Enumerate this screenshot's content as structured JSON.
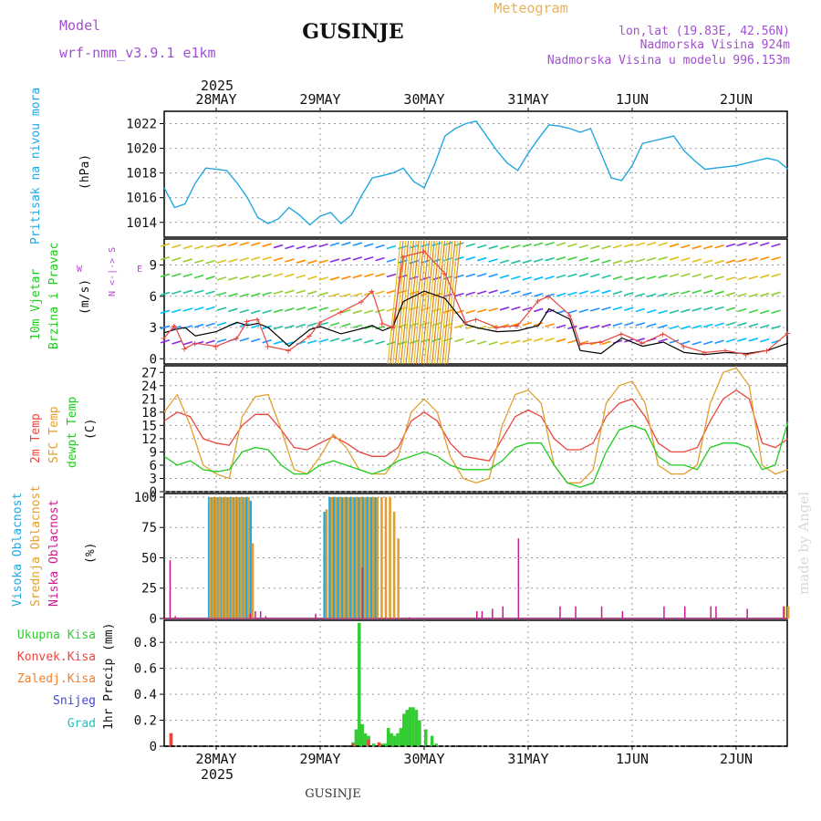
{
  "header": {
    "model_label": "Model",
    "model_name": "wrf-nmm_v3.9.1 e1km",
    "title": "GUSINJE",
    "subtitle": "Meteogram",
    "lonlat": "lon,lat (19.83E, 42.56N)",
    "altitude": "Nadmorska Visina 924m",
    "model_altitude": "Nadmorska Visina u modelu 996.153m",
    "footer_title": "GUSINJE",
    "watermark": "made by Angel",
    "year": "2025"
  },
  "dates": [
    "28MAY",
    "29MAY",
    "30MAY",
    "31MAY",
    "1JUN",
    "2JUN"
  ],
  "colors": {
    "pressure": "#22a7e0",
    "temp2m": "#e8463f",
    "sfc": "#e0a030",
    "dew": "#1fcc1f",
    "high_cloud": "#22a7e0",
    "mid_cloud": "#e0a030",
    "low_cloud": "#cc1b8e",
    "total_precip": "#33cc33",
    "conv_precip": "#e8463f",
    "freezing": "#f08030",
    "snow": "#4545e0",
    "hail": "#22c0c0",
    "purple": "#a050d0"
  },
  "panels": {
    "pressure": {
      "label": "Pritisak na nivou mora",
      "unit": "(hPa)"
    },
    "wind": {
      "label1": "10m Vjetar",
      "label2": "Brzina i Pravac",
      "unit": "(m/s)",
      "compass_ns": "N <-|-> S",
      "w": "W",
      "e": "E"
    },
    "temp": {
      "label1": "2m Temp",
      "label2": "SFC Temp",
      "label3": "dewpt Temp",
      "unit": "(C)"
    },
    "cloud": {
      "label1": "Visoka Oblacnost",
      "label2": "Srednja Oblacnost",
      "label3": "Niska Oblacnost",
      "unit": "(%)"
    },
    "precip": {
      "legend": [
        "Ukupna Kisa",
        "Konvek.Kisa",
        "Zaledj.Kisa",
        "Snijeg",
        "Grad"
      ],
      "unit": "1hr Precip (mm)"
    }
  },
  "chart_data": [
    {
      "type": "line",
      "name": "pressure",
      "ylabel": "(hPa)",
      "ylim": [
        1012.8,
        1023
      ],
      "xlim_days": [
        0,
        6
      ],
      "yticks": [
        1014,
        1016,
        1018,
        1020,
        1022
      ],
      "x": [
        0.0,
        0.1,
        0.2,
        0.3,
        0.4,
        0.5,
        0.6,
        0.7,
        0.8,
        0.9,
        1.0,
        1.1,
        1.2,
        1.3,
        1.4,
        1.5,
        1.6,
        1.7,
        1.8,
        1.9,
        2.0,
        2.1,
        2.2,
        2.3,
        2.4,
        2.5,
        2.6,
        2.7,
        2.8,
        2.9,
        3.0,
        3.1,
        3.2,
        3.3,
        3.4,
        3.5,
        3.6,
        3.7,
        3.8,
        3.9,
        4.0,
        4.1,
        4.2,
        4.3,
        4.4,
        4.5,
        4.6,
        4.7,
        4.8,
        4.9,
        5.0,
        5.1,
        5.2,
        5.3,
        5.4,
        5.5,
        5.6,
        5.7,
        5.8,
        5.9,
        6.0
      ],
      "y": [
        1016.8,
        1015.2,
        1015.5,
        1017.2,
        1018.4,
        1018.3,
        1018.2,
        1017.2,
        1016.0,
        1014.4,
        1013.9,
        1014.3,
        1015.2,
        1014.6,
        1013.8,
        1014.5,
        1014.8,
        1013.9,
        1014.6,
        1016.2,
        1017.6,
        1017.8,
        1018.0,
        1018.4,
        1017.3,
        1016.8,
        1018.7,
        1021.0,
        1021.6,
        1022.0,
        1022.2,
        1021.0,
        1019.8,
        1018.8,
        1018.2,
        1019.6,
        1020.8,
        1021.9,
        1021.8,
        1021.6,
        1021.3,
        1021.6,
        1019.6,
        1017.6,
        1017.4,
        1018.6,
        1020.4,
        1020.6,
        1020.8,
        1021.0,
        1019.8,
        1019.0,
        1018.3,
        1018.4,
        1018.5,
        1018.6,
        1018.8,
        1019.0,
        1019.2,
        1019.0,
        1018.3
      ]
    },
    {
      "type": "line",
      "name": "wind",
      "ylabel": "(m/s)",
      "ylim": [
        -0.5,
        11.5
      ],
      "yticks": [
        0,
        3,
        6,
        9
      ],
      "series": [
        {
          "name": "black",
          "x": [
            0.0,
            0.1,
            0.2,
            0.3,
            0.5,
            0.7,
            0.8,
            0.9,
            1.0,
            1.2,
            1.4,
            1.5,
            1.7,
            1.9,
            2.0,
            2.1,
            2.2,
            2.3,
            2.5,
            2.7,
            2.9,
            3.0,
            3.2,
            3.4,
            3.6,
            3.7,
            3.9,
            4.0,
            4.2,
            4.4,
            4.6,
            4.8,
            5.0,
            5.2,
            5.4,
            5.6,
            5.8,
            6.0
          ],
          "y": [
            2.5,
            2.8,
            3.0,
            2.2,
            2.6,
            3.5,
            3.2,
            3.4,
            3.0,
            1.2,
            2.8,
            3.1,
            2.4,
            2.9,
            3.2,
            2.7,
            3.1,
            5.5,
            6.5,
            5.8,
            3.3,
            3.0,
            2.6,
            2.7,
            3.2,
            4.8,
            3.8,
            0.8,
            0.5,
            2.0,
            1.2,
            1.6,
            0.6,
            0.4,
            0.6,
            0.5,
            0.8,
            1.5
          ]
        },
        {
          "name": "red",
          "x": [
            0.0,
            0.1,
            0.2,
            0.3,
            0.5,
            0.7,
            0.8,
            0.9,
            1.0,
            1.2,
            1.4,
            1.5,
            1.7,
            1.9,
            2.0,
            2.1,
            2.2,
            2.3,
            2.5,
            2.7,
            2.9,
            3.0,
            3.2,
            3.4,
            3.6,
            3.7,
            3.9,
            4.0,
            4.2,
            4.4,
            4.6,
            4.8,
            5.0,
            5.2,
            5.4,
            5.6,
            5.8,
            6.0
          ],
          "y": [
            2.0,
            3.2,
            1.0,
            1.5,
            1.2,
            2.0,
            3.6,
            3.8,
            1.2,
            0.8,
            2.2,
            3.5,
            4.5,
            5.5,
            6.5,
            3.4,
            3.0,
            9.8,
            10.3,
            8.2,
            3.5,
            3.8,
            3.0,
            3.2,
            5.6,
            6.0,
            4.2,
            1.4,
            1.6,
            2.4,
            1.5,
            2.4,
            1.2,
            0.6,
            0.8,
            0.4,
            0.8,
            2.5
          ]
        }
      ]
    },
    {
      "type": "line",
      "name": "temperature",
      "ylabel": "(C)",
      "ylim": [
        0,
        28.5
      ],
      "yticks": [
        0,
        3,
        6,
        9,
        12,
        15,
        18,
        21,
        24,
        27
      ],
      "x": [
        0.0,
        0.125,
        0.25,
        0.375,
        0.5,
        0.625,
        0.75,
        0.875,
        1.0,
        1.125,
        1.25,
        1.375,
        1.5,
        1.625,
        1.75,
        1.875,
        2.0,
        2.125,
        2.25,
        2.375,
        2.5,
        2.625,
        2.75,
        2.875,
        3.0,
        3.125,
        3.25,
        3.375,
        3.5,
        3.625,
        3.75,
        3.875,
        4.0,
        4.125,
        4.25,
        4.375,
        4.5,
        4.625,
        4.75,
        4.875,
        5.0,
        5.125,
        5.25,
        5.375,
        5.5,
        5.625,
        5.75,
        5.875,
        6.0
      ],
      "series": [
        {
          "name": "2m",
          "y": [
            16,
            18,
            17,
            12,
            11,
            10.5,
            15,
            17.5,
            17.5,
            14,
            10,
            9.5,
            11,
            12.5,
            11,
            9,
            8,
            8,
            10,
            16,
            18,
            16,
            11,
            8,
            7.5,
            7,
            12,
            17,
            18.5,
            17,
            12,
            9.5,
            9.5,
            11,
            17,
            20,
            21,
            17,
            11,
            9,
            9,
            10,
            16,
            21,
            23,
            21,
            11,
            10,
            12
          ]
        },
        {
          "name": "sfc",
          "y": [
            18,
            22,
            15,
            6,
            4,
            3,
            17,
            21.5,
            22,
            14,
            5,
            4,
            8,
            13,
            10,
            5,
            4,
            4,
            8,
            18,
            21,
            18,
            8,
            3,
            2,
            3,
            15,
            22,
            23,
            20,
            6,
            2,
            2,
            5,
            20,
            24,
            25,
            20,
            6,
            4,
            4,
            6,
            20,
            27,
            28,
            24,
            6,
            4,
            5
          ]
        },
        {
          "name": "dew",
          "y": [
            8,
            6,
            7,
            5,
            4.5,
            5,
            9,
            10,
            9.5,
            6,
            4,
            4,
            6,
            7,
            6,
            5,
            4,
            5,
            7,
            8,
            9,
            8,
            6,
            5,
            5,
            5,
            7,
            10,
            11,
            11,
            6,
            2,
            1,
            2,
            9,
            14,
            15,
            14,
            8,
            6,
            6,
            5,
            10,
            11,
            11,
            10,
            5,
            6,
            16
          ]
        }
      ]
    },
    {
      "type": "bar",
      "name": "cloud",
      "ylabel": "(%)",
      "ylim": [
        0,
        103
      ],
      "yticks": [
        0,
        25,
        50,
        75,
        100
      ],
      "series": [
        {
          "name": "high",
          "x": [
            0.42,
            0.45,
            0.48,
            0.51,
            0.54,
            0.57,
            0.6,
            0.63,
            0.66,
            0.69,
            0.72,
            0.75,
            0.78,
            0.82,
            1.53,
            1.58,
            1.62,
            1.66,
            1.7,
            1.74,
            1.78,
            1.82,
            1.86,
            1.9,
            1.94,
            1.98,
            2.02
          ],
          "y": [
            100,
            100,
            100,
            100,
            100,
            100,
            100,
            100,
            100,
            100,
            100,
            100,
            100,
            97,
            88,
            100,
            100,
            100,
            100,
            100,
            100,
            100,
            100,
            100,
            100,
            100,
            100
          ]
        },
        {
          "name": "mid",
          "x": [
            0.43,
            0.46,
            0.49,
            0.52,
            0.55,
            0.58,
            0.61,
            0.64,
            0.67,
            0.7,
            0.73,
            0.76,
            0.8,
            0.84,
            1.55,
            1.6,
            1.64,
            1.68,
            1.72,
            1.76,
            1.8,
            1.84,
            1.88,
            1.92,
            1.96,
            2.0,
            2.04,
            2.08,
            2.12,
            2.16,
            2.2,
            2.24,
            5.95,
            5.99
          ],
          "y": [
            100,
            100,
            100,
            100,
            100,
            100,
            100,
            100,
            100,
            100,
            100,
            100,
            100,
            62,
            90,
            100,
            100,
            100,
            100,
            100,
            100,
            100,
            100,
            100,
            100,
            100,
            100,
            100,
            100,
            100,
            88,
            66,
            10,
            10
          ]
        },
        {
          "name": "low",
          "x": [
            0.05,
            0.1,
            0.82,
            0.87,
            0.92,
            0.97,
            1.45,
            1.9,
            2.35,
            3.0,
            3.05,
            3.15,
            3.25,
            3.4,
            3.8,
            3.95,
            4.2,
            4.4,
            4.8,
            5.0,
            5.25,
            5.3,
            5.6,
            5.95
          ],
          "y": [
            48,
            2,
            4,
            6,
            6,
            2,
            4,
            42,
            1,
            6,
            6,
            8,
            10,
            66,
            10,
            10,
            10,
            6,
            10,
            10,
            10,
            10,
            8,
            10
          ]
        }
      ]
    },
    {
      "type": "bar",
      "name": "precip",
      "ylabel": "1hr Precip (mm)",
      "ylim": [
        0,
        0.97
      ],
      "yticks": [
        0,
        0.2,
        0.4,
        0.6,
        0.8
      ],
      "series": [
        {
          "name": "total",
          "x": [
            0.05,
            1.8,
            1.83,
            1.86,
            1.89,
            1.92,
            1.95,
            2.0,
            2.05,
            2.08,
            2.11,
            2.14,
            2.17,
            2.2,
            2.23,
            2.26,
            2.29,
            2.32,
            2.35,
            2.38,
            2.41,
            2.44,
            2.5,
            2.56,
            2.6
          ],
          "y": [
            0.1,
            0.03,
            0.13,
            0.95,
            0.17,
            0.1,
            0.08,
            0.02,
            0.02,
            0.02,
            0.02,
            0.14,
            0.1,
            0.08,
            0.1,
            0.14,
            0.25,
            0.28,
            0.3,
            0.3,
            0.28,
            0.2,
            0.13,
            0.08,
            0.02
          ]
        },
        {
          "name": "conv",
          "x": [
            0.05,
            1.8,
            1.95,
            2.05
          ],
          "y": [
            0.1,
            0.02,
            0.05,
            0.03
          ]
        }
      ]
    }
  ]
}
